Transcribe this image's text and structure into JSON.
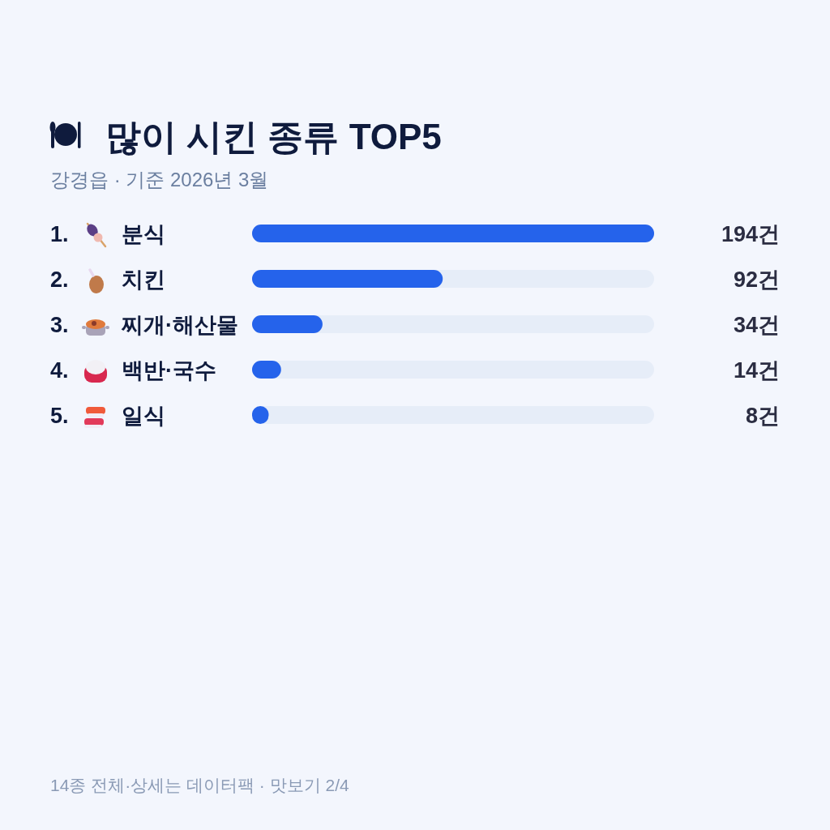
{
  "chart_data": {
    "type": "bar",
    "orientation": "horizontal",
    "title": "많이 시킨 종류 TOP5",
    "subtitle": "강경읍 · 기준 2026년 3월",
    "categories": [
      "1. 분식",
      "2. 치킨",
      "3. 찌개·해산물",
      "4. 백반·국수",
      "5. 일식"
    ],
    "values": [
      194,
      92,
      34,
      14,
      8
    ],
    "value_labels": [
      "194건",
      "92건",
      "34건",
      "14건",
      "8건"
    ],
    "color": "#2563eb",
    "xlim": [
      0,
      194
    ],
    "annotations": [
      "14종 전체·상세는 데이터팩 · 맛보기 2/4"
    ]
  }
}
